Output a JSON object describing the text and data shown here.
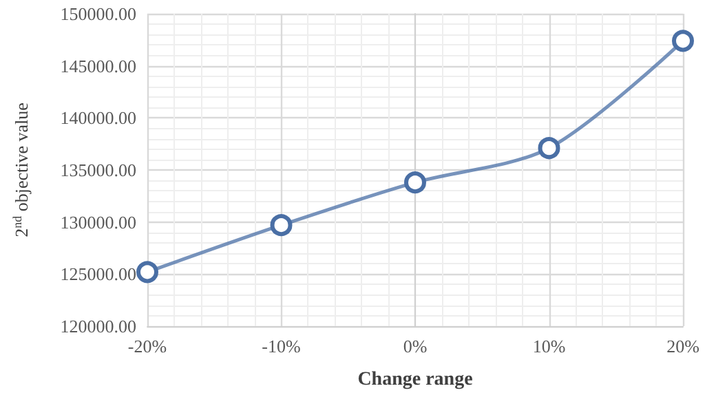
{
  "chart_data": {
    "type": "line",
    "xlabel": "Change range",
    "ylabel": "2$^{nd}$ objective value",
    "x": [
      -20,
      -10,
      0,
      10,
      20
    ],
    "series": [
      {
        "color": "#4a6fa5",
        "values": [
          125200,
          129700,
          133800,
          137100,
          147400
        ]
      }
    ],
    "xlim": [
      -20,
      20
    ],
    "xticks": [
      {
        "value": -20,
        "label": "-20%"
      },
      {
        "value": -10,
        "label": "-10%"
      },
      {
        "value": 0,
        "label": "0%"
      },
      {
        "value": 10,
        "label": "10%"
      },
      {
        "value": 20,
        "label": "20%"
      }
    ],
    "ylim": [
      120000,
      150000
    ],
    "yticks": [
      {
        "value": 120000,
        "label": "120000.00"
      },
      {
        "value": 125000,
        "label": "125000.00"
      },
      {
        "value": 130000,
        "label": "130000.00"
      },
      {
        "value": 135000,
        "label": "135000.00"
      },
      {
        "value": 140000,
        "label": "140000.00"
      },
      {
        "value": 145000,
        "label": "145000.00"
      },
      {
        "value": 150000,
        "label": "150000.00"
      }
    ],
    "grid": true,
    "marker": "circle",
    "line_style": "solid"
  }
}
